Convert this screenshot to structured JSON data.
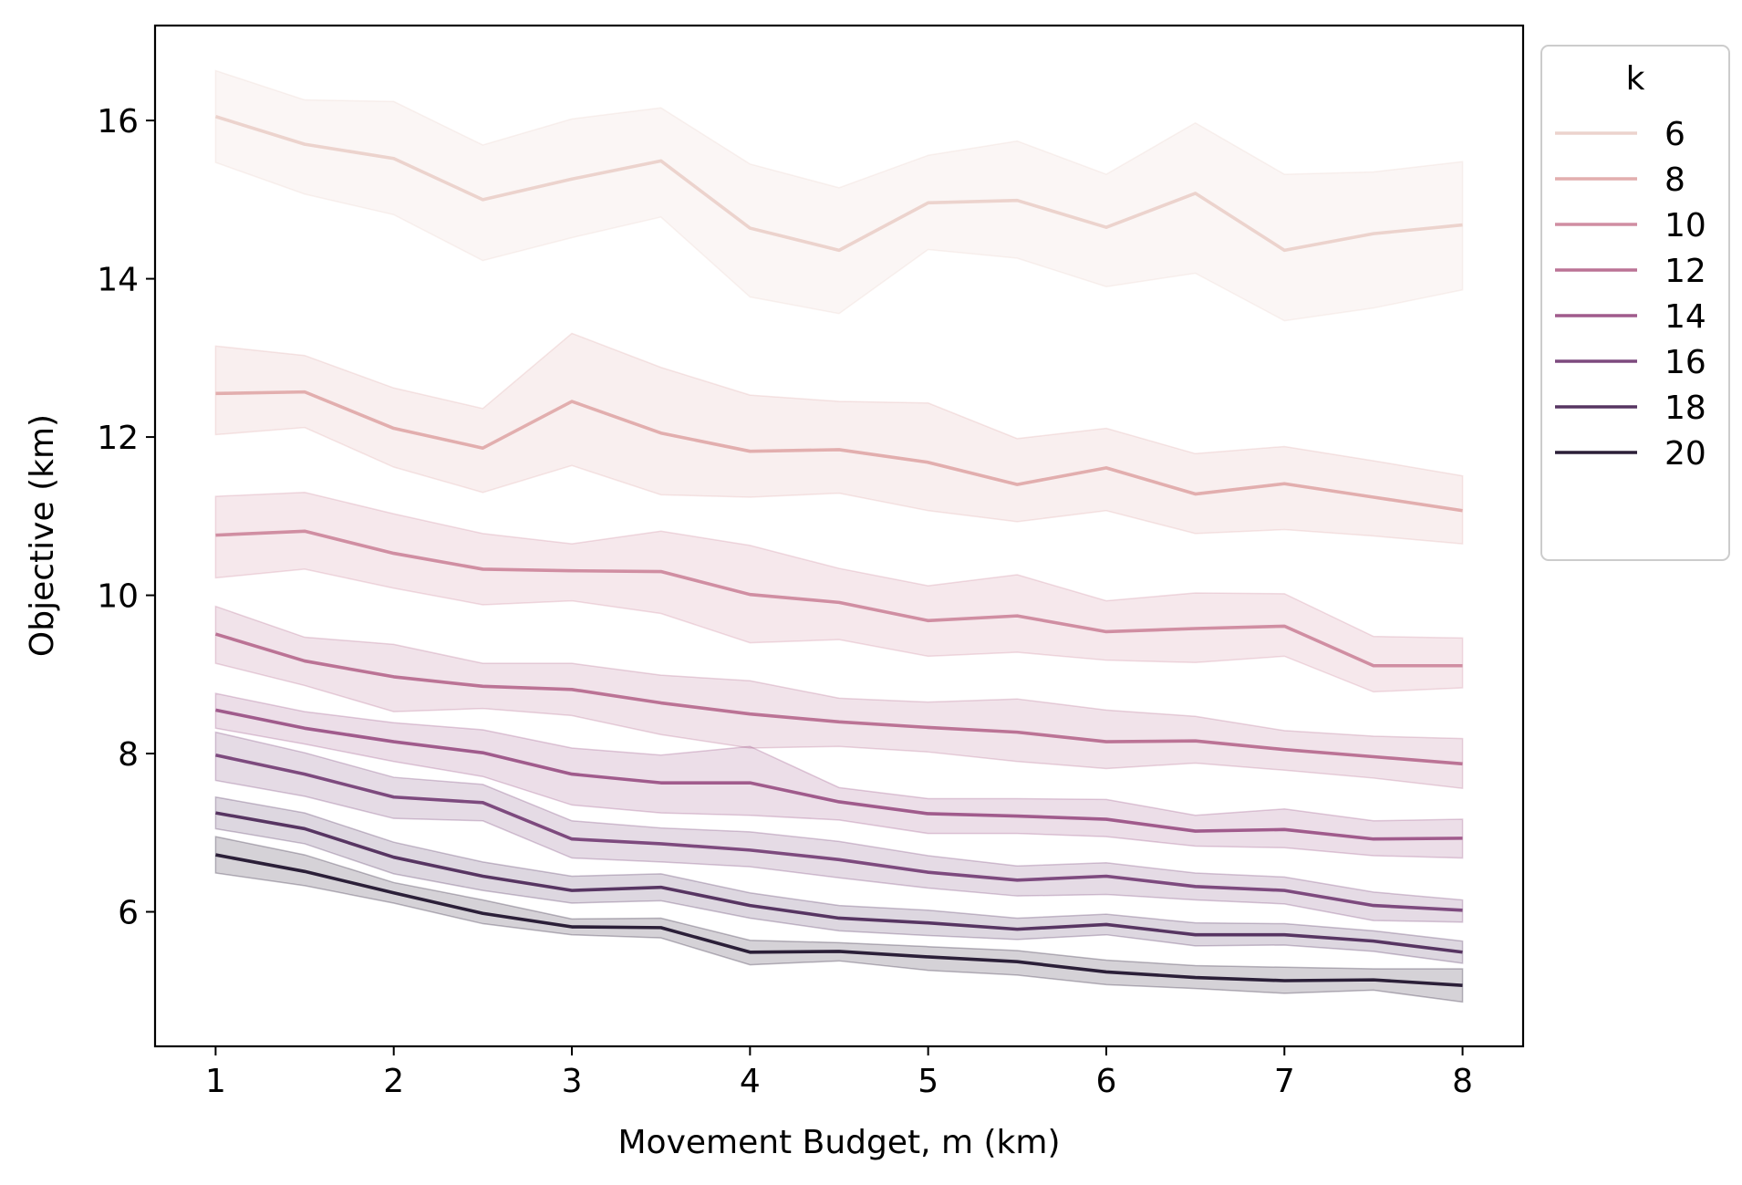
{
  "chart_data": {
    "type": "line",
    "title": "",
    "xlabel": "Movement Budget, m (km)",
    "ylabel": "Objective (km)",
    "xlim": [
      0.66,
      8.34
    ],
    "ylim": [
      4.3,
      17.2
    ],
    "xticks": [
      1,
      2,
      3,
      4,
      5,
      6,
      7,
      8
    ],
    "yticks": [
      6,
      8,
      10,
      12,
      14,
      16
    ],
    "x": [
      1,
      1.5,
      2,
      2.5,
      3,
      3.5,
      4,
      4.5,
      5,
      5.5,
      6,
      6.5,
      7,
      7.5,
      8
    ],
    "legend": {
      "title": "k",
      "position": "outside-right-top"
    },
    "series": [
      {
        "name": "6",
        "color": "#ecd3cd",
        "values": [
          16.05,
          15.7,
          15.52,
          15.0,
          15.26,
          15.49,
          14.64,
          14.36,
          14.96,
          14.99,
          14.65,
          15.08,
          14.36,
          14.57,
          14.68
        ],
        "lower": [
          15.47,
          15.07,
          14.81,
          14.23,
          14.52,
          14.78,
          13.77,
          13.56,
          14.37,
          14.26,
          13.9,
          14.07,
          13.47,
          13.63,
          13.86
        ],
        "upper": [
          16.63,
          16.26,
          16.24,
          15.69,
          16.02,
          16.16,
          15.45,
          15.15,
          15.56,
          15.74,
          15.32,
          15.97,
          15.32,
          15.35,
          15.48
        ]
      },
      {
        "name": "8",
        "color": "#e2aeae",
        "values": [
          12.55,
          12.57,
          12.11,
          11.86,
          12.45,
          12.05,
          11.82,
          11.84,
          11.68,
          11.4,
          11.61,
          11.28,
          11.41,
          11.24,
          11.07
        ],
        "lower": [
          12.03,
          12.12,
          11.62,
          11.3,
          11.64,
          11.27,
          11.24,
          11.29,
          11.07,
          10.93,
          11.07,
          10.78,
          10.83,
          10.75,
          10.65
        ],
        "upper": [
          13.15,
          13.03,
          12.62,
          12.36,
          13.31,
          12.88,
          12.53,
          12.45,
          12.43,
          11.98,
          12.11,
          11.79,
          11.88,
          11.7,
          11.51
        ]
      },
      {
        "name": "10",
        "color": "#d08ea2",
        "values": [
          10.76,
          10.81,
          10.53,
          10.33,
          10.31,
          10.3,
          10.01,
          9.91,
          9.68,
          9.74,
          9.54,
          9.58,
          9.61,
          9.11,
          9.11
        ],
        "lower": [
          10.22,
          10.33,
          10.09,
          9.88,
          9.93,
          9.77,
          9.4,
          9.44,
          9.23,
          9.28,
          9.18,
          9.15,
          9.23,
          8.78,
          8.83
        ],
        "upper": [
          11.25,
          11.3,
          11.03,
          10.78,
          10.65,
          10.81,
          10.63,
          10.34,
          10.12,
          10.26,
          9.93,
          10.03,
          10.02,
          9.48,
          9.46
        ]
      },
      {
        "name": "12",
        "color": "#bb7395",
        "values": [
          9.51,
          9.17,
          8.97,
          8.85,
          8.81,
          8.64,
          8.5,
          8.4,
          8.33,
          8.27,
          8.15,
          8.16,
          8.05,
          7.96,
          7.87
        ],
        "lower": [
          9.14,
          8.86,
          8.53,
          8.57,
          8.48,
          8.24,
          8.07,
          8.09,
          8.02,
          7.9,
          7.81,
          7.88,
          7.79,
          7.69,
          7.56
        ],
        "upper": [
          9.86,
          9.47,
          9.38,
          9.14,
          9.14,
          8.99,
          8.92,
          8.7,
          8.65,
          8.69,
          8.55,
          8.47,
          8.29,
          8.22,
          8.19
        ]
      },
      {
        "name": "14",
        "color": "#a05b8c",
        "values": [
          8.55,
          8.32,
          8.15,
          8.01,
          7.74,
          7.63,
          7.63,
          7.39,
          7.24,
          7.21,
          7.17,
          7.02,
          7.04,
          6.92,
          6.93
        ],
        "lower": [
          8.32,
          8.12,
          7.9,
          7.71,
          7.35,
          7.25,
          7.22,
          7.16,
          6.99,
          6.99,
          6.95,
          6.83,
          6.81,
          6.71,
          6.68
        ],
        "upper": [
          8.76,
          8.53,
          8.39,
          8.3,
          8.07,
          7.98,
          8.09,
          7.57,
          7.43,
          7.43,
          7.42,
          7.22,
          7.3,
          7.15,
          7.17
        ]
      },
      {
        "name": "16",
        "color": "#7d4a7e",
        "values": [
          7.98,
          7.74,
          7.45,
          7.38,
          6.92,
          6.86,
          6.78,
          6.66,
          6.5,
          6.4,
          6.45,
          6.32,
          6.27,
          6.08,
          6.02
        ],
        "lower": [
          7.66,
          7.46,
          7.18,
          7.15,
          6.68,
          6.63,
          6.57,
          6.43,
          6.3,
          6.2,
          6.22,
          6.15,
          6.1,
          5.89,
          5.87
        ],
        "upper": [
          8.27,
          8.01,
          7.7,
          7.61,
          7.15,
          7.06,
          7.01,
          6.89,
          6.71,
          6.58,
          6.62,
          6.49,
          6.44,
          6.25,
          6.15
        ]
      },
      {
        "name": "18",
        "color": "#573562",
        "values": [
          7.25,
          7.05,
          6.69,
          6.45,
          6.27,
          6.31,
          6.08,
          5.92,
          5.86,
          5.78,
          5.84,
          5.71,
          5.71,
          5.63,
          5.49
        ],
        "lower": [
          7.05,
          6.86,
          6.48,
          6.27,
          6.11,
          6.14,
          5.92,
          5.76,
          5.7,
          5.65,
          5.71,
          5.57,
          5.58,
          5.5,
          5.35
        ],
        "upper": [
          7.45,
          7.25,
          6.88,
          6.63,
          6.45,
          6.48,
          6.24,
          6.08,
          6.02,
          5.92,
          5.97,
          5.86,
          5.85,
          5.76,
          5.63
        ]
      },
      {
        "name": "20",
        "color": "#2b1f38",
        "values": [
          6.72,
          6.51,
          6.24,
          5.98,
          5.81,
          5.8,
          5.49,
          5.5,
          5.43,
          5.37,
          5.24,
          5.17,
          5.13,
          5.14,
          5.07
        ],
        "lower": [
          6.49,
          6.33,
          6.11,
          5.85,
          5.71,
          5.67,
          5.33,
          5.38,
          5.26,
          5.2,
          5.08,
          5.03,
          4.97,
          5.01,
          4.86
        ],
        "upper": [
          6.95,
          6.72,
          6.37,
          6.15,
          5.91,
          5.92,
          5.64,
          5.61,
          5.56,
          5.51,
          5.39,
          5.32,
          5.3,
          5.28,
          5.28
        ]
      }
    ]
  }
}
